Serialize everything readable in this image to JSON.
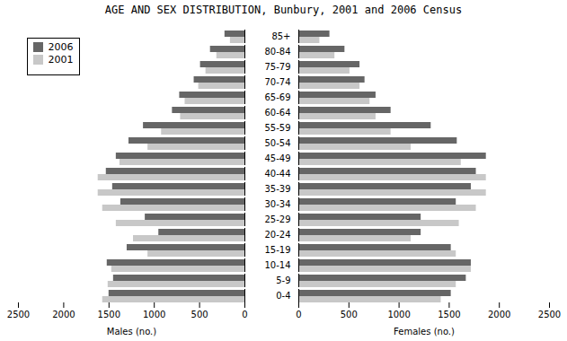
{
  "chart_data": [
    {
      "type": "bar",
      "orientation": "horizontal",
      "title": "AGE AND SEX DISTRIBUTION, Bunbury, 2001 and 2006 Census",
      "categories": [
        "0-4",
        "5-9",
        "10-14",
        "15-19",
        "20-24",
        "25-29",
        "30-34",
        "35-39",
        "40-44",
        "45-49",
        "50-54",
        "55-59",
        "60-64",
        "65-69",
        "70-74",
        "75-79",
        "80-84",
        "85+"
      ],
      "series": [
        {
          "name": "2006",
          "color": "#666666",
          "values": [
            1500,
            1450,
            1520,
            1300,
            950,
            1100,
            1370,
            1460,
            1530,
            1420,
            1280,
            1120,
            800,
            720,
            560,
            490,
            380,
            220
          ]
        },
        {
          "name": "2001",
          "color": "#c8c8c8",
          "values": [
            1570,
            1510,
            1470,
            1070,
            1230,
            1420,
            1570,
            1620,
            1620,
            1380,
            1070,
            920,
            710,
            660,
            510,
            430,
            310,
            160
          ]
        }
      ],
      "xlabel": "Males (no.)",
      "xlim": [
        2500,
        0
      ],
      "xticks": [
        0,
        500,
        1000,
        1500,
        2000,
        2500
      ],
      "tick_labels": "x",
      "legend": "upper left"
    },
    {
      "type": "bar",
      "orientation": "horizontal",
      "categories": [
        "0-4",
        "5-9",
        "10-14",
        "15-19",
        "20-24",
        "25-29",
        "30-34",
        "35-39",
        "40-44",
        "45-49",
        "50-54",
        "55-59",
        "60-64",
        "65-69",
        "70-74",
        "75-79",
        "80-84",
        "85+"
      ],
      "series": [
        {
          "name": "2006",
          "color": "#666666",
          "values": [
            1520,
            1670,
            1720,
            1520,
            1220,
            1220,
            1570,
            1720,
            1770,
            1870,
            1580,
            1320,
            920,
            770,
            660,
            610,
            460,
            310
          ]
        },
        {
          "name": "2001",
          "color": "#c8c8c8",
          "values": [
            1420,
            1570,
            1720,
            1570,
            1120,
            1600,
            1770,
            1870,
            1870,
            1620,
            1120,
            920,
            770,
            710,
            610,
            510,
            360,
            210
          ]
        }
      ],
      "xlabel": "Females (no.)",
      "xlim": [
        0,
        2500
      ],
      "xticks": [
        0,
        500,
        1000,
        1500,
        2000,
        2500
      ]
    }
  ]
}
